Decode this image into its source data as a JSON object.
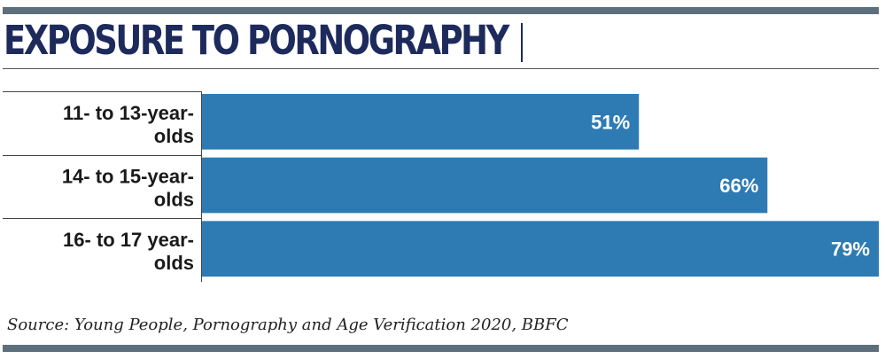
{
  "header": {
    "title": "EXPOSURE TO PORNOGRAPHY"
  },
  "chart_data": {
    "type": "bar",
    "orientation": "horizontal",
    "title": "EXPOSURE TO PORNOGRAPHY",
    "categories": [
      [
        "11- to 13-year-",
        "olds"
      ],
      [
        "14- to 15-year-",
        "olds"
      ],
      [
        "16- to 17 year-",
        "olds"
      ]
    ],
    "values": [
      51,
      66,
      79
    ],
    "value_labels": [
      "51%",
      "66%",
      "79%"
    ],
    "xlim": [
      0,
      79
    ],
    "bar_color": "#2e7bb4",
    "label_color": "#ffffff"
  },
  "footer": {
    "source": "Source: Young People, Pornography and Age Verification 2020, BBFC"
  },
  "colors": {
    "rule": "#5d6f7c",
    "title": "#1d2a5c"
  }
}
